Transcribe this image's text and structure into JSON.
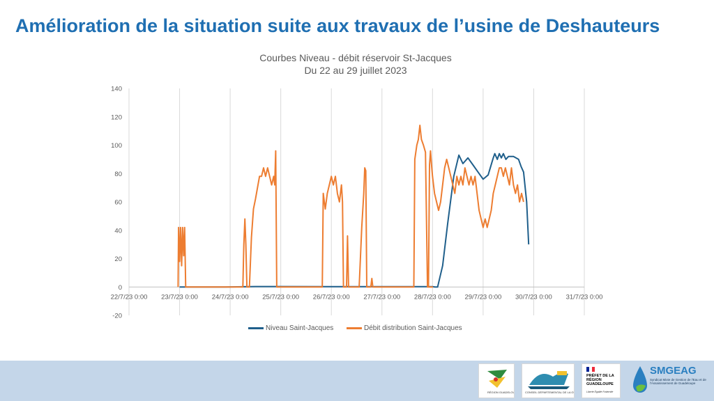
{
  "slide": {
    "title": "Amélioration de la situation suite aux travaux de l’usine de Deshauteurs"
  },
  "chart_data": {
    "type": "line",
    "title": "Courbes Niveau - débit réservoir St-Jacques",
    "subtitle": "Du 22 au 29 juillet 2023",
    "xlabel": "",
    "ylabel": "",
    "x_tick_labels": [
      "22/7/23 0:00",
      "23/7/23 0:00",
      "24/7/23 0:00",
      "25/7/23 0:00",
      "26/7/23 0:00",
      "27/7/23 0:00",
      "28/7/23 0:00",
      "29/7/23 0:00",
      "30/7/23 0:00",
      "31/7/23 0:00"
    ],
    "x_range_days": [
      0,
      9
    ],
    "y_ticks": [
      140,
      120,
      100,
      80,
      60,
      40,
      20,
      0,
      -20
    ],
    "ylim": [
      -20,
      140
    ],
    "grid": "vertical at each day; horizontal axis line at 0",
    "legend_position": "bottom",
    "series": [
      {
        "name": "Niveau Saint-Jacques",
        "color": "#1f5f8b",
        "points": [
          [
            1.0,
            0
          ],
          [
            1.9,
            0
          ],
          [
            2.5,
            0.3
          ],
          [
            3.0,
            0.3
          ],
          [
            4.0,
            0.2
          ],
          [
            5.0,
            0.2
          ],
          [
            6.0,
            0.2
          ],
          [
            6.05,
            0
          ],
          [
            6.1,
            0
          ],
          [
            6.2,
            15
          ],
          [
            6.3,
            45
          ],
          [
            6.42,
            78
          ],
          [
            6.52,
            93
          ],
          [
            6.6,
            87
          ],
          [
            6.7,
            91
          ],
          [
            6.8,
            86
          ],
          [
            6.9,
            81
          ],
          [
            7.0,
            76
          ],
          [
            7.1,
            79
          ],
          [
            7.2,
            91
          ],
          [
            7.23,
            94
          ],
          [
            7.28,
            90
          ],
          [
            7.32,
            94
          ],
          [
            7.36,
            91
          ],
          [
            7.4,
            94
          ],
          [
            7.45,
            90
          ],
          [
            7.5,
            92
          ],
          [
            7.6,
            92
          ],
          [
            7.7,
            90
          ],
          [
            7.75,
            85
          ],
          [
            7.8,
            81
          ],
          [
            7.86,
            60
          ],
          [
            7.9,
            30
          ]
        ]
      },
      {
        "name": "Débit distribution Saint-Jacques",
        "color": "#ed7d31",
        "points": [
          [
            0.97,
            0
          ],
          [
            0.98,
            42
          ],
          [
            1.0,
            18
          ],
          [
            1.02,
            42
          ],
          [
            1.04,
            15
          ],
          [
            1.06,
            42
          ],
          [
            1.08,
            22
          ],
          [
            1.1,
            42
          ],
          [
            1.12,
            0
          ],
          [
            1.5,
            0
          ],
          [
            2.0,
            0
          ],
          [
            2.25,
            0
          ],
          [
            2.27,
            30
          ],
          [
            2.29,
            48
          ],
          [
            2.31,
            30
          ],
          [
            2.33,
            0
          ],
          [
            2.38,
            0
          ],
          [
            2.42,
            35
          ],
          [
            2.46,
            55
          ],
          [
            2.5,
            62
          ],
          [
            2.54,
            70
          ],
          [
            2.58,
            78
          ],
          [
            2.62,
            78
          ],
          [
            2.66,
            84
          ],
          [
            2.7,
            78
          ],
          [
            2.74,
            84
          ],
          [
            2.78,
            78
          ],
          [
            2.82,
            72
          ],
          [
            2.86,
            78
          ],
          [
            2.88,
            72
          ],
          [
            2.9,
            96
          ],
          [
            2.92,
            0
          ],
          [
            3.5,
            0
          ],
          [
            3.82,
            0
          ],
          [
            3.84,
            66
          ],
          [
            3.88,
            55
          ],
          [
            3.92,
            66
          ],
          [
            3.96,
            72
          ],
          [
            4.0,
            78
          ],
          [
            4.04,
            72
          ],
          [
            4.08,
            78
          ],
          [
            4.12,
            66
          ],
          [
            4.16,
            60
          ],
          [
            4.2,
            72
          ],
          [
            4.22,
            60
          ],
          [
            4.24,
            0
          ],
          [
            4.3,
            0
          ],
          [
            4.32,
            36
          ],
          [
            4.34,
            0
          ],
          [
            4.5,
            0
          ],
          [
            4.55,
            0
          ],
          [
            4.6,
            42
          ],
          [
            4.64,
            66
          ],
          [
            4.66,
            84
          ],
          [
            4.68,
            82
          ],
          [
            4.7,
            0
          ],
          [
            4.78,
            0
          ],
          [
            4.8,
            6
          ],
          [
            4.82,
            0
          ],
          [
            5.0,
            0
          ],
          [
            5.5,
            0
          ],
          [
            5.63,
            0
          ],
          [
            5.65,
            90
          ],
          [
            5.69,
            100
          ],
          [
            5.72,
            104
          ],
          [
            5.75,
            114
          ],
          [
            5.78,
            104
          ],
          [
            5.82,
            100
          ],
          [
            5.86,
            95
          ],
          [
            5.9,
            0
          ],
          [
            6.0,
            0
          ],
          [
            5.92,
            0
          ],
          [
            5.94,
            86
          ],
          [
            5.96,
            96
          ],
          [
            5.98,
            86
          ],
          [
            6.0,
            78
          ],
          [
            6.04,
            66
          ],
          [
            6.08,
            60
          ],
          [
            6.12,
            54
          ],
          [
            6.16,
            60
          ],
          [
            6.2,
            72
          ],
          [
            6.24,
            84
          ],
          [
            6.28,
            90
          ],
          [
            6.32,
            84
          ],
          [
            6.36,
            78
          ],
          [
            6.4,
            72
          ],
          [
            6.44,
            66
          ],
          [
            6.48,
            78
          ],
          [
            6.52,
            72
          ],
          [
            6.56,
            78
          ],
          [
            6.6,
            72
          ],
          [
            6.64,
            84
          ],
          [
            6.68,
            78
          ],
          [
            6.72,
            72
          ],
          [
            6.76,
            78
          ],
          [
            6.8,
            72
          ],
          [
            6.84,
            78
          ],
          [
            6.88,
            66
          ],
          [
            6.92,
            54
          ],
          [
            6.96,
            48
          ],
          [
            7.0,
            42
          ],
          [
            7.04,
            48
          ],
          [
            7.08,
            42
          ],
          [
            7.12,
            48
          ],
          [
            7.16,
            54
          ],
          [
            7.2,
            66
          ],
          [
            7.24,
            72
          ],
          [
            7.28,
            78
          ],
          [
            7.32,
            84
          ],
          [
            7.36,
            84
          ],
          [
            7.4,
            78
          ],
          [
            7.44,
            84
          ],
          [
            7.48,
            78
          ],
          [
            7.52,
            72
          ],
          [
            7.56,
            84
          ],
          [
            7.6,
            72
          ],
          [
            7.64,
            66
          ],
          [
            7.68,
            72
          ],
          [
            7.72,
            60
          ],
          [
            7.76,
            66
          ],
          [
            7.8,
            60
          ]
        ]
      }
    ]
  },
  "footer": {
    "logos": [
      {
        "name": "Région Guadeloupe",
        "text": "RÉGION GUADELOUPE"
      },
      {
        "name": "Conseil Départemental",
        "text": "CONSEIL DÉPARTEMENTAL DE LA GUADELOUPE"
      },
      {
        "name": "Préfet",
        "text": "PRÉFET DE LA RÉGION GUADELOUPE",
        "motto": "Liberté Égalité Fraternité"
      },
      {
        "name": "SMGEAG",
        "text": "SMGEAG",
        "subtitle": "Syndicat Mixte de Gestion de l'Eau et de l'Assainissement de Guadeloupe"
      }
    ]
  }
}
